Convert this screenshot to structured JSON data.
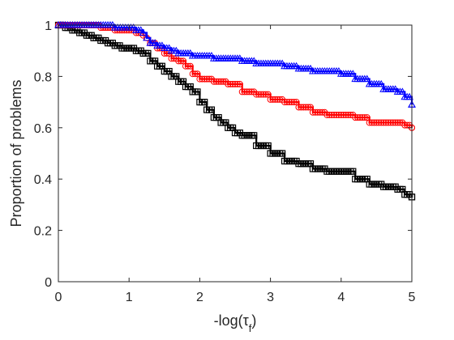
{
  "chart_data": {
    "type": "line",
    "title": "",
    "xlabel": "-log(τ",
    "xlabel_subscript": "f",
    "xlabel_suffix": ")",
    "ylabel": "Proportion of problems",
    "xlim": [
      0,
      5
    ],
    "ylim": [
      0,
      1
    ],
    "xticks": [
      0,
      1,
      2,
      3,
      4,
      5
    ],
    "yticks": [
      0,
      0.2,
      0.4,
      0.6,
      0.8,
      1
    ],
    "ytick_labels": [
      "0",
      "0.2",
      "0.4",
      "0.6",
      "0.8",
      "1"
    ],
    "grid": false,
    "legend": null,
    "series": [
      {
        "color": "#0000ff",
        "marker": "triangle",
        "x": [
          0,
          0.3,
          0.6,
          0.8,
          0.95,
          1.1,
          1.2,
          1.25,
          1.3,
          1.4,
          1.5,
          1.6,
          1.7,
          1.8,
          1.9,
          2.0,
          2.2,
          2.4,
          2.6,
          2.8,
          3.0,
          3.2,
          3.4,
          3.6,
          3.8,
          4.0,
          4.2,
          4.4,
          4.6,
          4.8,
          4.9,
          5.0
        ],
        "y": [
          1.0,
          1.0,
          1.0,
          0.99,
          0.99,
          0.98,
          0.97,
          0.95,
          0.93,
          0.92,
          0.91,
          0.9,
          0.89,
          0.89,
          0.88,
          0.88,
          0.87,
          0.87,
          0.86,
          0.85,
          0.85,
          0.84,
          0.83,
          0.82,
          0.82,
          0.81,
          0.79,
          0.77,
          0.75,
          0.74,
          0.72,
          0.69
        ]
      },
      {
        "color": "#ff0000",
        "marker": "circle",
        "x": [
          0,
          0.3,
          0.6,
          0.8,
          1.0,
          1.1,
          1.2,
          1.25,
          1.3,
          1.4,
          1.5,
          1.6,
          1.7,
          1.8,
          1.9,
          2.0,
          2.2,
          2.4,
          2.6,
          2.8,
          3.0,
          3.2,
          3.4,
          3.6,
          3.8,
          4.0,
          4.2,
          4.4,
          4.6,
          4.8,
          4.9,
          5.0
        ],
        "y": [
          1.0,
          1.0,
          0.99,
          0.98,
          0.98,
          0.97,
          0.96,
          0.95,
          0.93,
          0.91,
          0.89,
          0.87,
          0.86,
          0.84,
          0.81,
          0.79,
          0.78,
          0.77,
          0.74,
          0.73,
          0.71,
          0.7,
          0.68,
          0.66,
          0.65,
          0.65,
          0.64,
          0.62,
          0.62,
          0.62,
          0.61,
          0.6
        ]
      },
      {
        "color": "#000000",
        "marker": "square",
        "x": [
          0,
          0.1,
          0.2,
          0.3,
          0.4,
          0.5,
          0.6,
          0.7,
          0.8,
          0.9,
          1.0,
          1.1,
          1.2,
          1.3,
          1.4,
          1.5,
          1.6,
          1.7,
          1.8,
          1.9,
          2.0,
          2.1,
          2.2,
          2.3,
          2.4,
          2.5,
          2.6,
          2.8,
          3.0,
          3.2,
          3.4,
          3.6,
          3.8,
          4.0,
          4.2,
          4.4,
          4.6,
          4.8,
          4.9,
          5.0
        ],
        "y": [
          1.0,
          0.99,
          0.98,
          0.97,
          0.96,
          0.95,
          0.94,
          0.93,
          0.92,
          0.91,
          0.91,
          0.9,
          0.89,
          0.86,
          0.84,
          0.82,
          0.8,
          0.78,
          0.76,
          0.74,
          0.7,
          0.67,
          0.64,
          0.62,
          0.6,
          0.58,
          0.57,
          0.53,
          0.5,
          0.47,
          0.46,
          0.44,
          0.43,
          0.43,
          0.4,
          0.38,
          0.37,
          0.36,
          0.34,
          0.33
        ]
      }
    ]
  }
}
